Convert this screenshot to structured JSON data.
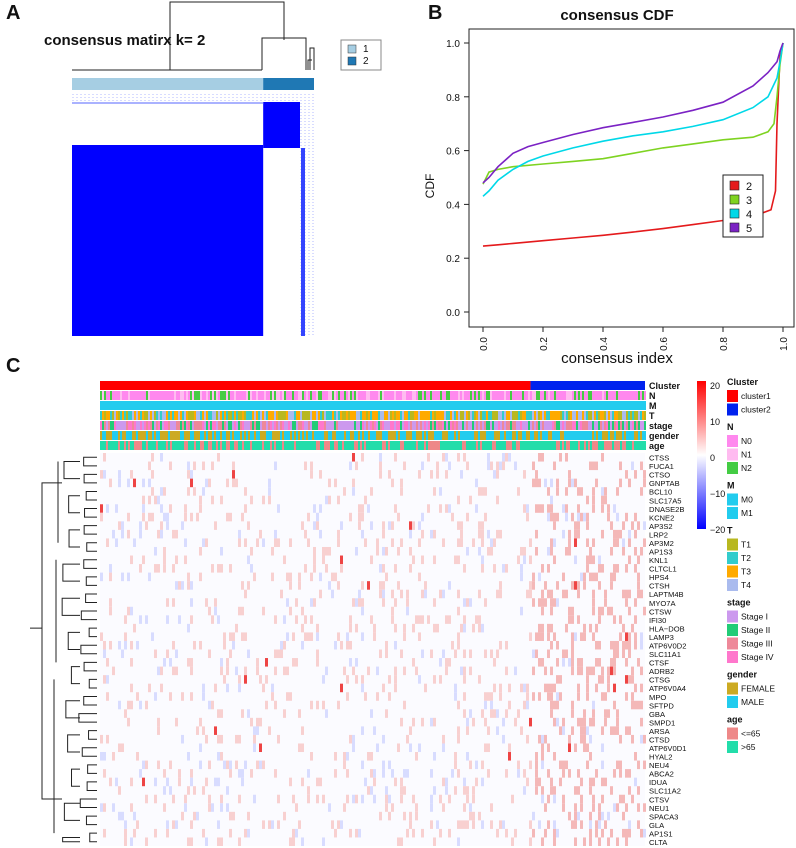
{
  "panels": {
    "a": "A",
    "b": "B",
    "c": "C"
  },
  "chart_data": [
    {
      "panel": "A",
      "type": "heatmap",
      "title": "consensus matirx k= 2",
      "legend": [
        {
          "label": "1",
          "color": "#a6cee3"
        },
        {
          "label": "2",
          "color": "#1f78b4"
        }
      ],
      "clusters": [
        {
          "label": "2",
          "size_fraction": 0.79,
          "color": "#1f78b4"
        },
        {
          "label": "1",
          "size_fraction": 0.21,
          "color": "#a6cee3"
        }
      ],
      "colors": {
        "high": "#0000ff",
        "low": "#ffffff"
      }
    },
    {
      "panel": "B",
      "type": "line",
      "title": "consensus CDF",
      "xlabel": "consensus index",
      "ylabel": "CDF",
      "xlim": [
        0,
        1
      ],
      "ylim": [
        0,
        1
      ],
      "xticks": [
        "0.0",
        "0.2",
        "0.4",
        "0.6",
        "0.8",
        "1.0"
      ],
      "yticks": [
        "0.0",
        "0.2",
        "0.4",
        "0.6",
        "0.8",
        "1.0"
      ],
      "legend_position": "right",
      "series": [
        {
          "name": "2",
          "color": "#e41a1c",
          "x": [
            0,
            0.05,
            0.1,
            0.2,
            0.3,
            0.4,
            0.5,
            0.6,
            0.7,
            0.8,
            0.9,
            0.96,
            0.975,
            0.98,
            0.99,
            1.0
          ],
          "y": [
            0.245,
            0.25,
            0.255,
            0.265,
            0.275,
            0.285,
            0.297,
            0.31,
            0.325,
            0.34,
            0.355,
            0.38,
            0.45,
            0.7,
            0.95,
            1.0
          ]
        },
        {
          "name": "3",
          "color": "#7ed321",
          "x": [
            0,
            0.02,
            0.05,
            0.1,
            0.2,
            0.3,
            0.4,
            0.5,
            0.6,
            0.7,
            0.8,
            0.9,
            0.95,
            0.97,
            0.98,
            0.99,
            1.0
          ],
          "y": [
            0.475,
            0.52,
            0.53,
            0.54,
            0.55,
            0.56,
            0.57,
            0.59,
            0.61,
            0.625,
            0.64,
            0.65,
            0.67,
            0.7,
            0.8,
            0.92,
            1.0
          ]
        },
        {
          "name": "4",
          "color": "#00d8e8",
          "x": [
            0,
            0.02,
            0.05,
            0.1,
            0.15,
            0.2,
            0.3,
            0.4,
            0.5,
            0.6,
            0.7,
            0.8,
            0.9,
            0.95,
            0.98,
            0.99,
            1.0
          ],
          "y": [
            0.43,
            0.45,
            0.49,
            0.53,
            0.56,
            0.58,
            0.61,
            0.635,
            0.655,
            0.67,
            0.69,
            0.715,
            0.76,
            0.8,
            0.87,
            0.93,
            1.0
          ]
        },
        {
          "name": "5",
          "color": "#7b22c4",
          "x": [
            0,
            0.02,
            0.05,
            0.1,
            0.15,
            0.2,
            0.3,
            0.4,
            0.5,
            0.6,
            0.7,
            0.8,
            0.9,
            0.95,
            0.98,
            0.99,
            1.0
          ],
          "y": [
            0.48,
            0.5,
            0.54,
            0.59,
            0.615,
            0.63,
            0.66,
            0.685,
            0.705,
            0.725,
            0.75,
            0.78,
            0.84,
            0.89,
            0.93,
            0.97,
            1.0
          ]
        }
      ]
    },
    {
      "panel": "C",
      "type": "heatmap",
      "color_scale": {
        "min": -20,
        "max": 20,
        "ticks": [
          "20",
          "10",
          "0",
          "−10",
          "−20"
        ],
        "colors": [
          "#0000ff",
          "#ffffff",
          "#ff0000"
        ]
      },
      "annotation_tracks": [
        "Cluster",
        "N",
        "M",
        "T",
        "stage",
        "gender",
        "age"
      ],
      "cluster_split_fraction": 0.79,
      "genes": [
        "CTSS",
        "FUCA1",
        "CTSO",
        "GNPTAB",
        "BCL10",
        "SLC17A5",
        "DNASE2B",
        "KCNE2",
        "AP3S2",
        "LRP2",
        "AP3M2",
        "AP1S3",
        "KNL1",
        "CLTCL1",
        "HPS4",
        "CTSH",
        "LAPTM4B",
        "MYO7A",
        "CTSW",
        "IFI30",
        "HLA−DOB",
        "LAMP3",
        "ATP6V0D2",
        "SLC11A1",
        "CTSF",
        "ADRB2",
        "CTSG",
        "ATP6V0A4",
        "MPO",
        "SFTPD",
        "GBA",
        "SMPD1",
        "ARSA",
        "CTSD",
        "ATP6V0D1",
        "HYAL2",
        "NEU4",
        "ABCA2",
        "IDUA",
        "SLC11A2",
        "CTSV",
        "NEU1",
        "SPACA3",
        "GLA",
        "AP1S1",
        "CLTA"
      ],
      "legend_groups": [
        {
          "title": "Cluster",
          "items": [
            {
              "label": "cluster1",
              "color": "#ff0000"
            },
            {
              "label": "cluster2",
              "color": "#0022ee"
            }
          ]
        },
        {
          "title": "N",
          "items": [
            {
              "label": "N0",
              "color": "#ff88ee"
            },
            {
              "label": "N1",
              "color": "#ffbbf0"
            },
            {
              "label": "N2",
              "color": "#44cc44"
            }
          ]
        },
        {
          "title": "M",
          "items": [
            {
              "label": "M0",
              "color": "#22ccee"
            },
            {
              "label": "M1",
              "color": "#22ccee"
            }
          ]
        },
        {
          "title": "T",
          "items": [
            {
              "label": "T1",
              "color": "#b8b820"
            },
            {
              "label": "T2",
              "color": "#33cccc"
            },
            {
              "label": "T3",
              "color": "#ffaa00"
            },
            {
              "label": "T4",
              "color": "#aabbee"
            }
          ]
        },
        {
          "title": "stage",
          "items": [
            {
              "label": "Stage I",
              "color": "#cc99ee"
            },
            {
              "label": "Stage II",
              "color": "#22cc77"
            },
            {
              "label": "Stage III",
              "color": "#ee8899"
            },
            {
              "label": "Stage IV",
              "color": "#ff77cc"
            }
          ]
        },
        {
          "title": "gender",
          "items": [
            {
              "label": "FEMALE",
              "color": "#ccaa22"
            },
            {
              "label": "MALE",
              "color": "#22ccee"
            }
          ]
        },
        {
          "title": "age",
          "items": [
            {
              "label": "<=65",
              "color": "#ee8888"
            },
            {
              "label": ">65",
              "color": "#22ddaa"
            }
          ]
        }
      ]
    }
  ]
}
